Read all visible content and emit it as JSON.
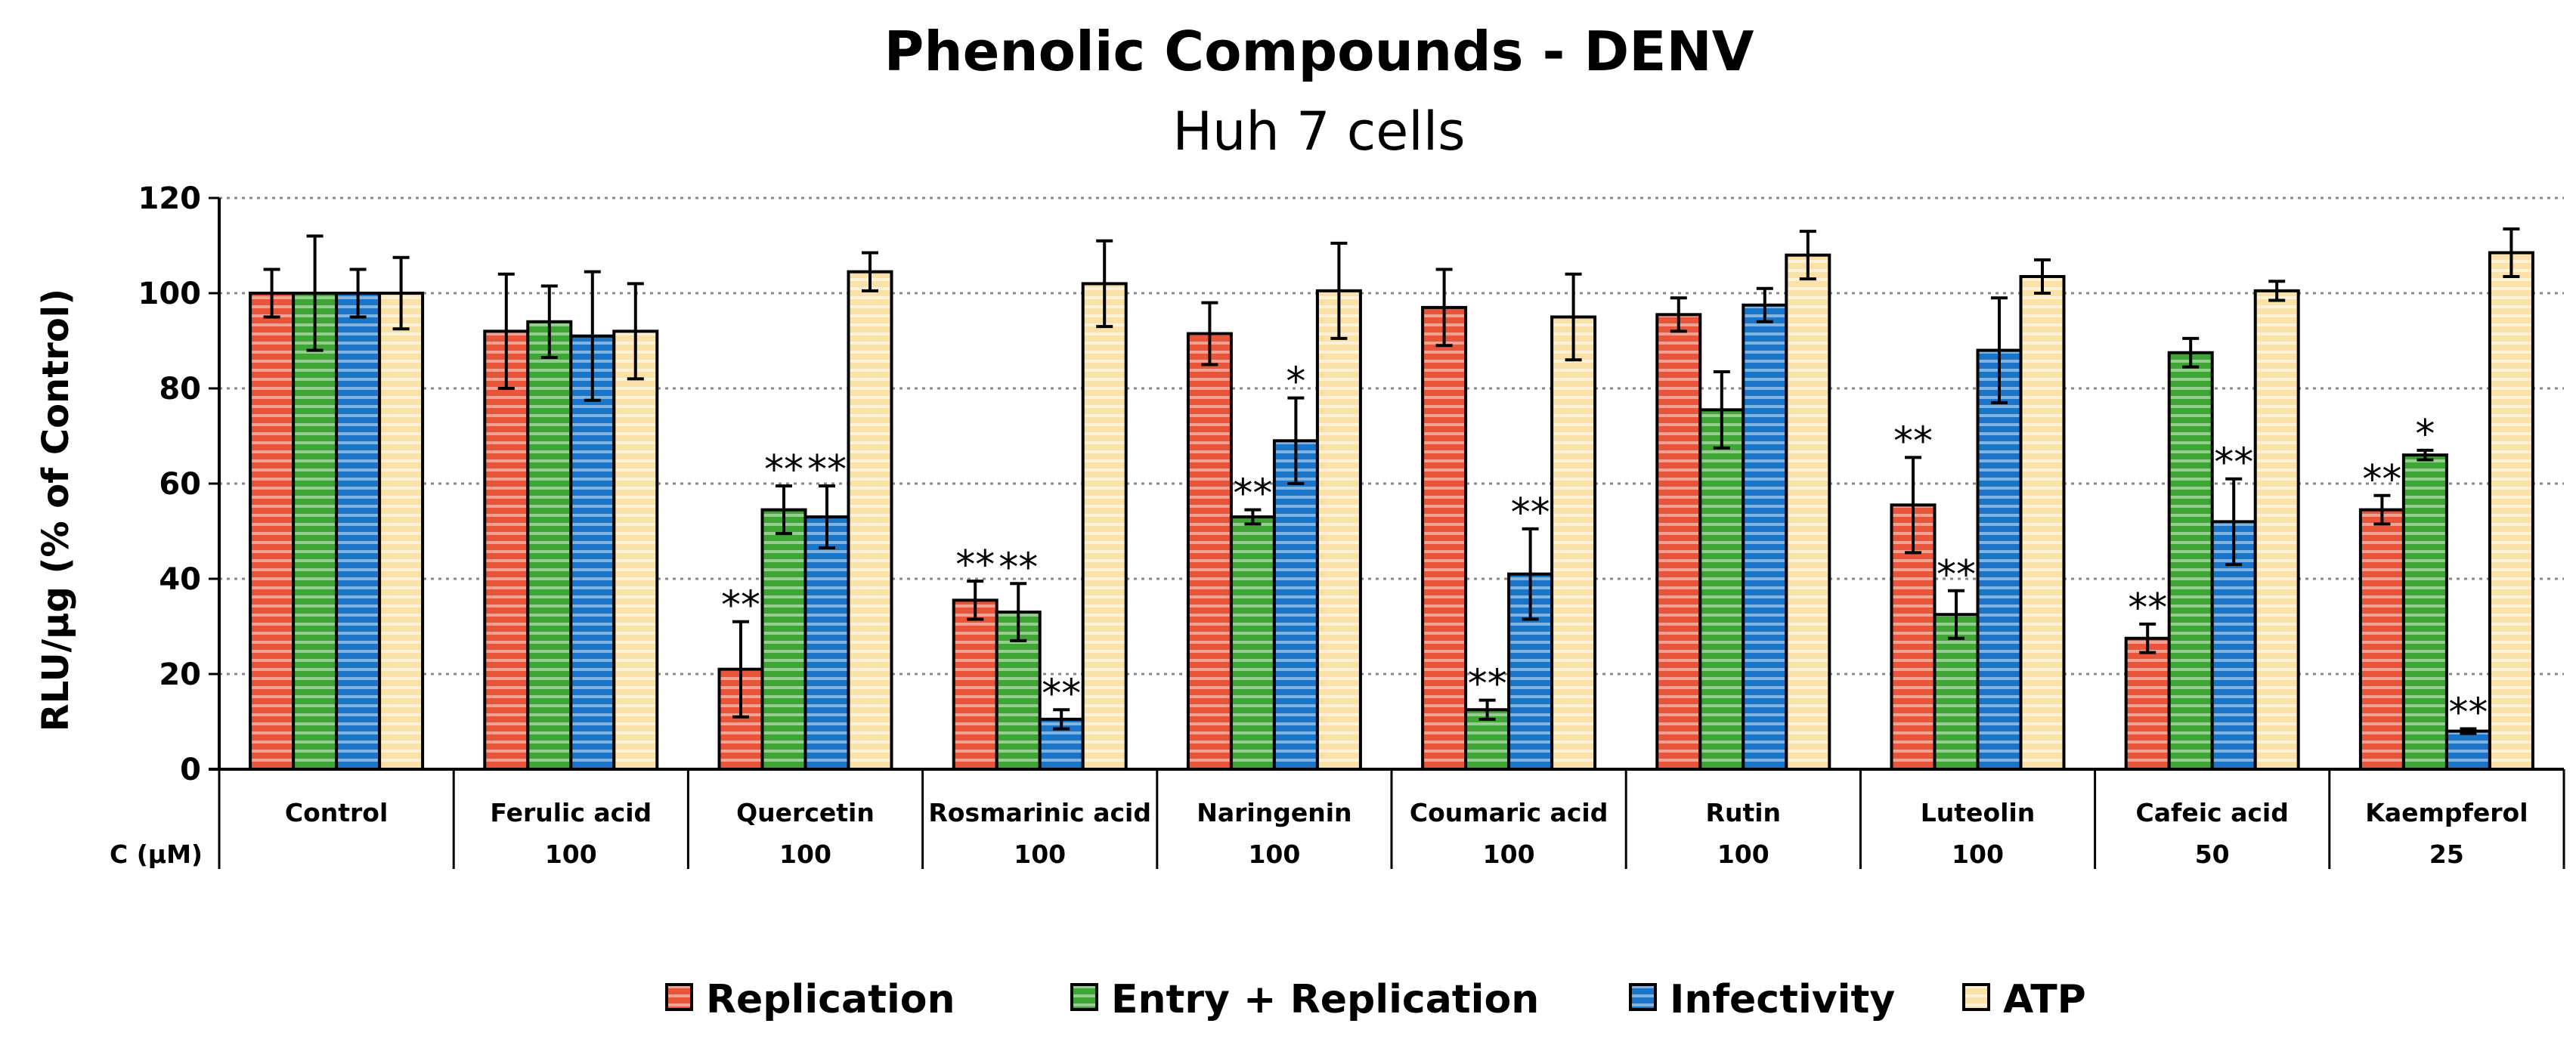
{
  "chart_data": {
    "type": "bar",
    "title": "Phenolic Compounds - DENV",
    "subtitle": "Huh 7 cells",
    "ylabel": "RLU/µg (% of Control)",
    "ylim": [
      0,
      120
    ],
    "yticks": [
      0,
      20,
      40,
      60,
      80,
      100,
      120
    ],
    "grid": true,
    "legend_position": "bottom",
    "row_label": "C (µM)",
    "categories": [
      "Control",
      "Ferulic acid",
      "Quercetin",
      "Rosmarinic acid",
      "Naringenin",
      "Coumaric acid",
      "Rutin",
      "Luteolin",
      "Cafeic acid",
      "Kaempferol"
    ],
    "concentrations": [
      "",
      "100",
      "100",
      "100",
      "100",
      "100",
      "100",
      "100",
      "50",
      "25"
    ],
    "series": [
      {
        "name": "Replication",
        "color": "#e8553a",
        "values": [
          100,
          92,
          21,
          35.5,
          91.5,
          97,
          95.5,
          55.5,
          27.5,
          54.5
        ],
        "errors": [
          5,
          12,
          10,
          4,
          6.5,
          8,
          3.5,
          10,
          3,
          3
        ],
        "significance": [
          "",
          "",
          "**",
          "**",
          "",
          "",
          "",
          "**",
          "**",
          "**"
        ]
      },
      {
        "name": "Entry + Replication",
        "color": "#3fa535",
        "values": [
          100,
          94,
          54.5,
          33,
          53,
          12.5,
          75.5,
          32.5,
          87.5,
          66
        ],
        "errors": [
          12,
          7.5,
          5,
          6,
          1.5,
          2,
          8,
          5,
          3,
          1
        ],
        "significance": [
          "",
          "",
          "**",
          "**",
          "**",
          "**",
          "",
          "**",
          "",
          "*"
        ]
      },
      {
        "name": "Infectivity",
        "color": "#1a75c8",
        "values": [
          100,
          91,
          53,
          10.5,
          69,
          41,
          97.5,
          88,
          52,
          8
        ],
        "errors": [
          5,
          13.5,
          6.5,
          2,
          9,
          9.5,
          3.5,
          11,
          9,
          0.5
        ],
        "significance": [
          "",
          "",
          "**",
          "**",
          "*",
          "**",
          "",
          "",
          "**",
          "**"
        ]
      },
      {
        "name": "ATP",
        "color": "#fae1a8",
        "values": [
          100,
          92,
          104.5,
          102,
          100.5,
          95,
          108,
          103.5,
          100.5,
          108.5
        ],
        "errors": [
          7.5,
          10,
          4,
          9,
          10,
          9,
          5,
          3.5,
          2,
          5
        ],
        "significance": [
          "",
          "",
          "",
          "",
          "",
          "",
          "",
          "",
          "",
          ""
        ]
      }
    ]
  }
}
